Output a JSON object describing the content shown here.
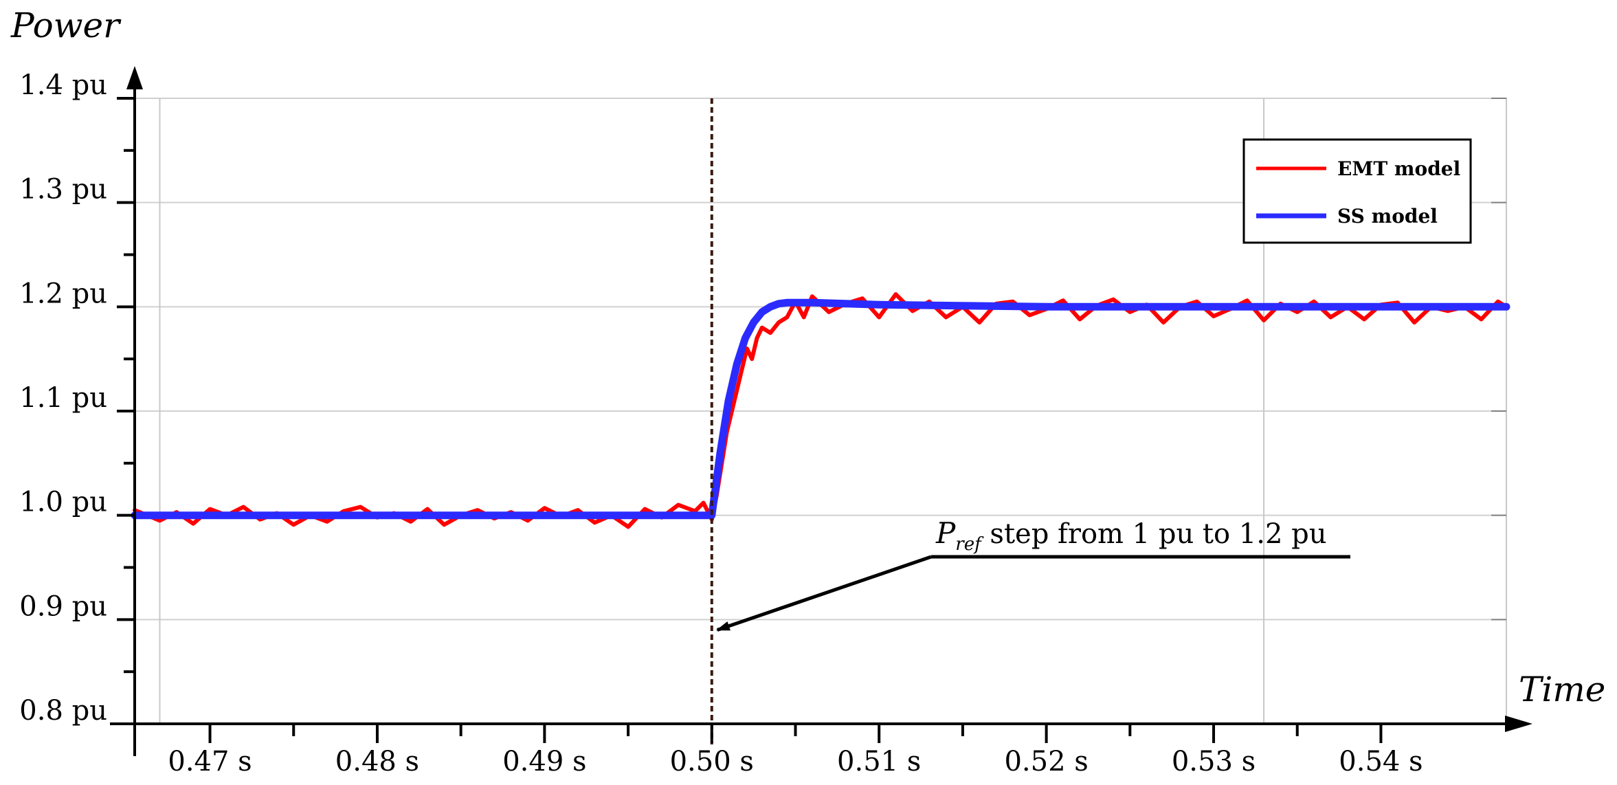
{
  "chart_data": {
    "type": "line",
    "xlabel": "Time",
    "ylabel": "Power",
    "xlim": [
      0.4655,
      0.5475
    ],
    "ylim": [
      0.8,
      1.4
    ],
    "x_ticks": [
      {
        "value": 0.47,
        "label": "0.47 s"
      },
      {
        "value": 0.48,
        "label": "0.48 s"
      },
      {
        "value": 0.49,
        "label": "0.49 s"
      },
      {
        "value": 0.5,
        "label": "0.50 s"
      },
      {
        "value": 0.51,
        "label": "0.51 s"
      },
      {
        "value": 0.52,
        "label": "0.52 s"
      },
      {
        "value": 0.53,
        "label": "0.53 s"
      },
      {
        "value": 0.54,
        "label": "0.54 s"
      }
    ],
    "y_ticks": [
      {
        "value": 0.8,
        "label": "0.8 pu"
      },
      {
        "value": 0.9,
        "label": "0.9 pu"
      },
      {
        "value": 1.0,
        "label": "1.0 pu"
      },
      {
        "value": 1.1,
        "label": "1.1 pu"
      },
      {
        "value": 1.2,
        "label": "1.2 pu"
      },
      {
        "value": 1.3,
        "label": "1.3 pu"
      },
      {
        "value": 1.4,
        "label": "1.4 pu"
      }
    ],
    "grid_x": [
      0.467,
      0.533
    ],
    "grid": true,
    "legend_position": "top-right",
    "series": [
      {
        "name": "EMT model",
        "color": "#ff0000",
        "x": [
          0.4655,
          0.467,
          0.468,
          0.469,
          0.47,
          0.471,
          0.472,
          0.473,
          0.474,
          0.475,
          0.476,
          0.477,
          0.478,
          0.479,
          0.48,
          0.481,
          0.482,
          0.483,
          0.484,
          0.485,
          0.486,
          0.487,
          0.488,
          0.489,
          0.49,
          0.491,
          0.492,
          0.493,
          0.494,
          0.495,
          0.496,
          0.497,
          0.498,
          0.499,
          0.4995,
          0.5,
          0.5003,
          0.5006,
          0.5009,
          0.5012,
          0.5015,
          0.5018,
          0.5021,
          0.5024,
          0.5027,
          0.503,
          0.5035,
          0.504,
          0.5045,
          0.505,
          0.5055,
          0.506,
          0.507,
          0.508,
          0.509,
          0.51,
          0.511,
          0.512,
          0.513,
          0.514,
          0.515,
          0.516,
          0.517,
          0.518,
          0.519,
          0.52,
          0.521,
          0.522,
          0.523,
          0.524,
          0.525,
          0.526,
          0.527,
          0.528,
          0.529,
          0.53,
          0.531,
          0.532,
          0.533,
          0.534,
          0.535,
          0.536,
          0.537,
          0.538,
          0.539,
          0.54,
          0.541,
          0.542,
          0.543,
          0.544,
          0.545,
          0.546,
          0.547,
          0.5475
        ],
        "y": [
          1.005,
          0.995,
          1.003,
          0.992,
          1.006,
          1.0,
          1.008,
          0.996,
          1.002,
          0.991,
          1.0,
          0.994,
          1.004,
          1.008,
          0.998,
          1.002,
          0.994,
          1.006,
          0.991,
          1.0,
          1.005,
          0.997,
          1.003,
          0.995,
          1.007,
          0.999,
          1.005,
          0.993,
          1.0,
          0.989,
          1.006,
          0.998,
          1.01,
          1.004,
          1.012,
          0.996,
          1.02,
          1.05,
          1.08,
          1.1,
          1.12,
          1.14,
          1.16,
          1.15,
          1.17,
          1.18,
          1.175,
          1.185,
          1.19,
          1.205,
          1.19,
          1.21,
          1.195,
          1.203,
          1.208,
          1.19,
          1.212,
          1.196,
          1.205,
          1.19,
          1.2,
          1.185,
          1.203,
          1.205,
          1.192,
          1.198,
          1.206,
          1.188,
          1.201,
          1.207,
          1.195,
          1.202,
          1.185,
          1.2,
          1.205,
          1.191,
          1.198,
          1.206,
          1.187,
          1.203,
          1.195,
          1.205,
          1.19,
          1.2,
          1.188,
          1.202,
          1.204,
          1.185,
          1.2,
          1.196,
          1.2,
          1.188,
          1.205,
          1.2
        ]
      },
      {
        "name": "SS model",
        "color": "#2b2bff",
        "x": [
          0.4655,
          0.47,
          0.48,
          0.49,
          0.4995,
          0.5,
          0.5005,
          0.501,
          0.5015,
          0.502,
          0.5025,
          0.503,
          0.5035,
          0.504,
          0.5045,
          0.505,
          0.506,
          0.508,
          0.51,
          0.515,
          0.52,
          0.525,
          0.53,
          0.535,
          0.54,
          0.545,
          0.5475
        ],
        "y": [
          1.0,
          1.0,
          1.0,
          1.0,
          1.0,
          1.0,
          1.06,
          1.11,
          1.145,
          1.17,
          1.185,
          1.195,
          1.2,
          1.203,
          1.204,
          1.204,
          1.204,
          1.203,
          1.202,
          1.201,
          1.2,
          1.2,
          1.2,
          1.2,
          1.2,
          1.2,
          1.2
        ]
      }
    ],
    "step_marker": {
      "x": 0.5
    },
    "annotation": {
      "prefix": "P",
      "subscript": "ref",
      "text": " step from 1 pu to 1.2 pu",
      "target": {
        "x": 0.5,
        "y": 0.89
      }
    }
  }
}
